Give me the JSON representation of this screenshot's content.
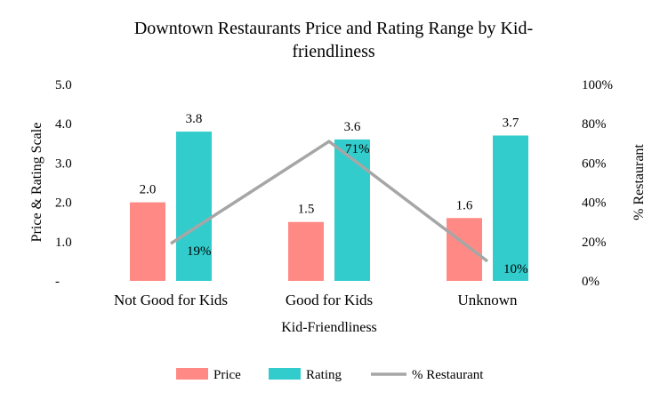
{
  "chart_data": {
    "type": "bar",
    "title_lines": [
      "Downtown Restaurants Price and Rating Range by Kid-",
      "friendliness"
    ],
    "xlabel": "Kid-Friendliness",
    "ylabel": "Price & Rating Scale",
    "y2label": "% Restaurant",
    "categories": [
      "Not Good for Kids",
      "Good for Kids",
      "Unknown"
    ],
    "series": [
      {
        "name": "Price",
        "kind": "bar",
        "color": "#ff8a85",
        "values": [
          2.0,
          1.5,
          1.6
        ],
        "labels": [
          "2.0",
          "1.5",
          "1.6"
        ]
      },
      {
        "name": "Rating",
        "kind": "bar",
        "color": "#33cccc",
        "values": [
          3.8,
          3.6,
          3.7
        ],
        "labels": [
          "3.8",
          "3.6",
          "3.7"
        ]
      },
      {
        "name": "% Restaurant",
        "kind": "line",
        "axis": "right",
        "color": "#a6a6a6",
        "values": [
          19,
          71,
          10
        ],
        "labels": [
          "19%",
          "71%",
          "10%"
        ]
      }
    ],
    "ylim": [
      0,
      5
    ],
    "y_ticks": [
      "-",
      "1.0",
      "2.0",
      "3.0",
      "4.0",
      "5.0"
    ],
    "y2lim": [
      0,
      100
    ],
    "y2_ticks": [
      "0%",
      "20%",
      "40%",
      "60%",
      "80%",
      "100%"
    ],
    "legend": "bottom",
    "grid": false
  }
}
